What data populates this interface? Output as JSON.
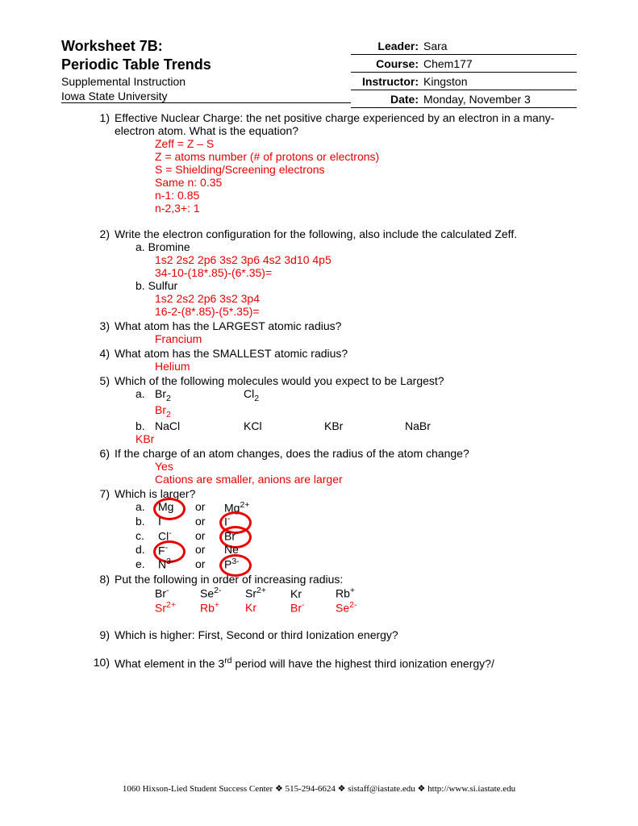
{
  "header": {
    "title_line1": "Worksheet 7B:",
    "title_line2": "Periodic Table Trends",
    "sub1": "Supplemental Instruction",
    "sub2": "Iowa State University",
    "meta": [
      {
        "label": "Leader:",
        "value": "Sara"
      },
      {
        "label": "Course:",
        "value": "Chem177"
      },
      {
        "label": "Instructor:",
        "value": "Kingston"
      },
      {
        "label": "Date:",
        "value": "Monday, November 3"
      }
    ]
  },
  "q1": {
    "num": "1)",
    "text": "Effective Nuclear Charge: the net positive charge experienced  by an electron in a many-electron atom. What is the equation?",
    "ans": [
      "Zeff = Z – S",
      "Z = atoms number (# of protons or electrons)",
      "S = Shielding/Screening electrons",
      "Same n: 0.35",
      "n-1: 0.85",
      "n-2,3+: 1"
    ]
  },
  "q2": {
    "num": "2)",
    "text": "Write the electron configuration for the following, also include the calculated Zeff.",
    "a_label": "a.  Bromine",
    "a_ans1": "1s2 2s2 2p6 3s2 3p6 4s2 3d10 4p5",
    "a_ans2": "34-10-(18*.85)-(6*.35)=",
    "b_label": "b.  Sulfur",
    "b_ans1": "1s2 2s2 2p6 3s2 3p4",
    "b_ans2": "16-2-(8*.85)-(5*.35)="
  },
  "q3": {
    "num": "3)",
    "text": "What atom has the LARGEST atomic radius?",
    "ans": "Francium"
  },
  "q4": {
    "num": "4)",
    "text": "What atom has the SMALLEST atomic radius?",
    "ans": "Helium"
  },
  "q5": {
    "num": "5)",
    "text": "Which of the following molecules would you expect to be Largest?",
    "a_label": "a.",
    "a_opt1": "Br",
    "a_opt2": "Cl",
    "a_ans": "Br",
    "b_label": "b.",
    "b_opts": [
      "NaCl",
      "KCl",
      "KBr",
      "NaBr"
    ],
    "b_ans": "KBr"
  },
  "q6": {
    "num": "6)",
    "text": "If the charge of an atom changes, does the radius of the atom change?",
    "ans1": "Yes",
    "ans2": "Cations are smaller, anions are larger"
  },
  "q7": {
    "num": "7)",
    "text": "Which is larger?",
    "rows": [
      {
        "lbl": "a.",
        "o1": "Mg",
        "or": "or",
        "o2": "Mg",
        "o2sup": "2+",
        "circle": 1
      },
      {
        "lbl": "b.",
        "o1": "I",
        "or": "or",
        "o2": "I",
        "o2sup": "-",
        "circle": 2
      },
      {
        "lbl": "c.",
        "o1": "Cl",
        "o1sup": "-",
        "or": "or",
        "o2": "Br",
        "o2sup": "-",
        "circle": 2
      },
      {
        "lbl": "d.",
        "o1": "F",
        "o1sup": "-",
        "or": "or",
        "o2": "Ne",
        "circle": 1
      },
      {
        "lbl": "e.",
        "o1": "N",
        "o1sup": "3-",
        "or": "or",
        "o2": "P",
        "o2sup": "3-",
        "circle": 2
      }
    ]
  },
  "q8": {
    "num": "8)",
    "text": "Put the following in order of increasing radius:",
    "opts_html": [
      "Br-",
      "Se2-",
      "Sr2+",
      "Kr",
      "Rb+"
    ],
    "ans_html": [
      "Sr2+",
      "Rb+",
      "Kr",
      "Br-",
      "Se2-"
    ]
  },
  "q9": {
    "num": "9)",
    "text": "Which is higher: First, Second or third Ionization energy?"
  },
  "q10": {
    "num": "10)",
    "text_pre": "What element in the 3",
    "text_sup": "rd",
    "text_post": " period will have the highest third ionization energy?/"
  },
  "footer": {
    "parts": [
      "1060 Hixson-Lied Student Success Center",
      "515-294-6624",
      "sistaff@iastate.edu",
      "http://www.si.iastate.edu"
    ],
    "sep": "  ❖  "
  },
  "colors": {
    "answer": "#e80000",
    "text": "#000000",
    "bg": "#ffffff"
  }
}
